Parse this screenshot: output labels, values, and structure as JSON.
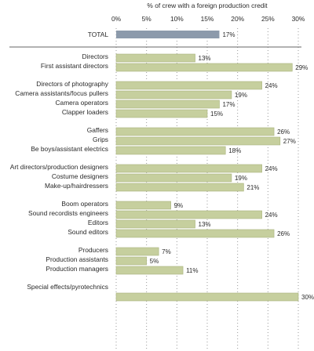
{
  "chart_data": {
    "type": "bar",
    "orientation": "horizontal",
    "title": "% of crew with a foreign production credit",
    "xlim": [
      0,
      30
    ],
    "x_ticks": [
      "0%",
      "5%",
      "10%",
      "15%",
      "20%",
      "25%",
      "30%"
    ],
    "x_tick_values": [
      0,
      5,
      10,
      15,
      20,
      25,
      30
    ],
    "grid": "vertical dotted",
    "colors": {
      "total": "#8c9aab",
      "bar": "#c6cf9e",
      "bar_edge": "#a9b37c",
      "grid": "#9a9a9a",
      "separator": "#666666"
    },
    "total": {
      "label": "TOTAL",
      "value": 17,
      "value_label": "17%"
    },
    "labels": [
      "Directors",
      "First assistant directors",
      "Directors of photography",
      "Camera assistants/focus pullers",
      "Camera operators",
      "Clapper loaders",
      "Gaffers",
      "Grips",
      "Be boys/assistant electrics",
      "Art directors/production designers",
      "Costume designers",
      "Make-up/hairdressers",
      "Boom operators",
      "Sound recordists engineers",
      "Editors",
      "Sound editors",
      "Producers",
      "Production assistants",
      "Production managers",
      "Special effects/pyrotechnics"
    ],
    "bars": [
      {
        "value": 13,
        "value_label": "13%"
      },
      {
        "value": 29,
        "value_label": "29%"
      },
      {
        "value": 24,
        "value_label": "24%"
      },
      {
        "value": 19,
        "value_label": "19%"
      },
      {
        "value": 17,
        "value_label": "17%"
      },
      {
        "value": 15,
        "value_label": "15%"
      },
      {
        "value": 26,
        "value_label": "26%"
      },
      {
        "value": 27,
        "value_label": "27%"
      },
      {
        "value": 18,
        "value_label": "18%"
      },
      {
        "value": 24,
        "value_label": "24%"
      },
      {
        "value": 19,
        "value_label": "19%"
      },
      {
        "value": 21,
        "value_label": "21%"
      },
      {
        "value": 9,
        "value_label": "9%"
      },
      {
        "value": 24,
        "value_label": "24%"
      },
      {
        "value": 13,
        "value_label": "13%"
      },
      {
        "value": 26,
        "value_label": "26%"
      },
      {
        "value": 7,
        "value_label": "7%"
      },
      {
        "value": 5,
        "value_label": "5%"
      },
      {
        "value": 11,
        "value_label": "11%"
      },
      {
        "value": 30,
        "value_label": "30%"
      }
    ]
  }
}
